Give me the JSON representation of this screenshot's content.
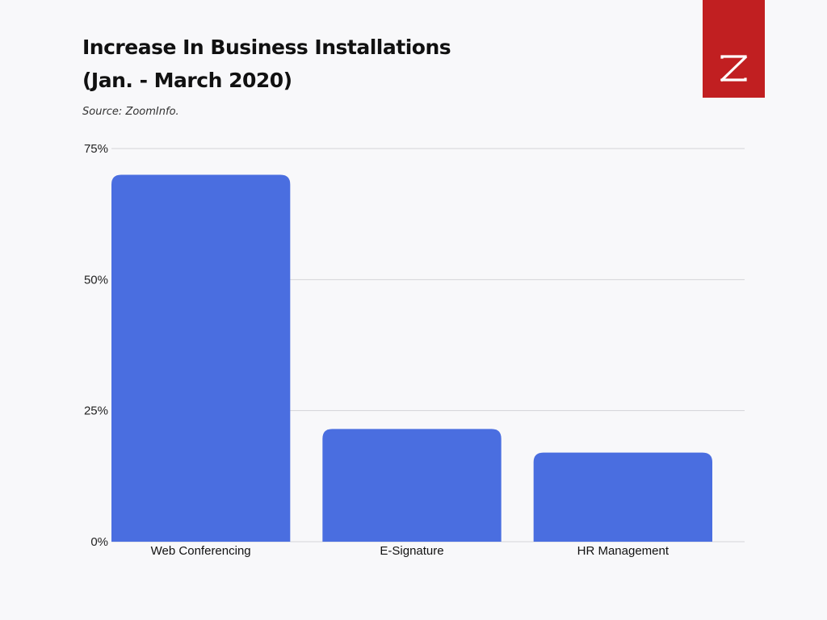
{
  "header": {
    "title_line1": "Increase In Business Installations",
    "title_line2": "(Jan. - March 2020)",
    "source": "Source: ZoomInfo."
  },
  "logo": {
    "icon": "zoominfo-z-logo-icon",
    "background_color": "#c11f21"
  },
  "chart_data": {
    "type": "bar",
    "title": "Increase In Business Installations (Jan. - March 2020)",
    "categories": [
      "Web Conferencing",
      "E-Signature",
      "HR Management"
    ],
    "values": [
      70,
      21.5,
      17
    ],
    "ylim": [
      0,
      75
    ],
    "yticks": [
      0,
      25,
      50,
      75
    ],
    "ytick_labels": [
      "0%",
      "25%",
      "50%",
      "75%"
    ],
    "ylabel": "",
    "xlabel": "",
    "grid": true,
    "bar_color": "#4a6ee0",
    "grid_color": "#d4d4d8"
  }
}
